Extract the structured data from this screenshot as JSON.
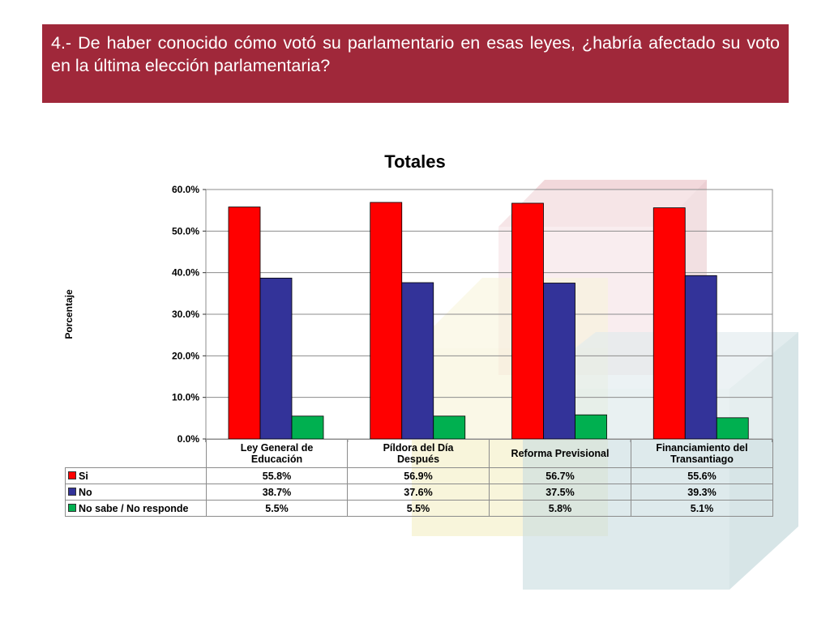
{
  "header": {
    "question": "4.- De haber conocido cómo votó su parlamentario en esas leyes, ¿habría afectado su voto en la última elección parlamentaria?"
  },
  "colors": {
    "banner": "#A0283A",
    "si": "#FF0000",
    "no": "#333399",
    "ns": "#00B050"
  },
  "chart_data": {
    "type": "bar",
    "title": "Totales",
    "ylabel": "Porcentaje",
    "xlabel": "",
    "ylim": [
      0,
      60
    ],
    "yticks": [
      "0.0%",
      "10.0%",
      "20.0%",
      "30.0%",
      "40.0%",
      "50.0%",
      "60.0%"
    ],
    "grid": true,
    "legend": "table",
    "categories": [
      [
        "Ley General de",
        "Educación"
      ],
      [
        "Píldora del Día",
        "Después"
      ],
      [
        "Reforma Previsional"
      ],
      [
        "Financiamiento del",
        "Transantiago"
      ]
    ],
    "series": [
      {
        "name": "Si",
        "values": [
          55.8,
          56.9,
          56.7,
          55.6
        ],
        "labels": [
          "55.8%",
          "56.9%",
          "56.7%",
          "55.6%"
        ]
      },
      {
        "name": "No",
        "values": [
          38.7,
          37.6,
          37.5,
          39.3
        ],
        "labels": [
          "38.7%",
          "37.6%",
          "37.5%",
          "39.3%"
        ]
      },
      {
        "name": "No sabe / No responde",
        "values": [
          5.5,
          5.5,
          5.8,
          5.1
        ],
        "labels": [
          "5.5%",
          "5.5%",
          "5.8%",
          "5.1%"
        ]
      }
    ]
  }
}
